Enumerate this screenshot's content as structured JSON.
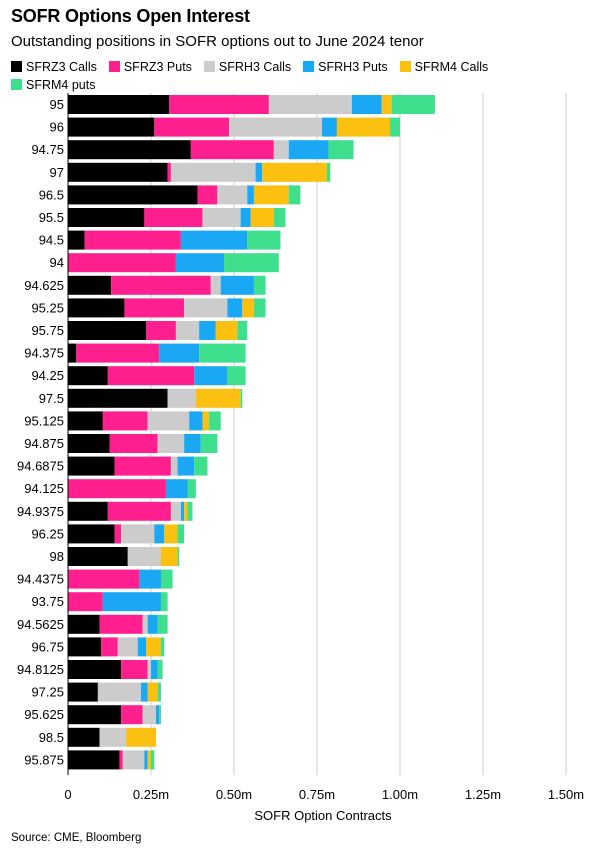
{
  "title": "SOFR Options Open Interest",
  "subtitle": "Outstanding positions in SOFR options out to June 2024 tenor",
  "source": "Source: CME, Bloomberg",
  "chart_data": {
    "type": "bar",
    "orientation": "horizontal",
    "stacked": true,
    "title": "SOFR Options Open Interest",
    "subtitle": "Outstanding positions in SOFR options out to June 2024 tenor",
    "xlabel": "SOFR Option Contracts",
    "ylabel": "",
    "xlim": [
      0,
      1.5
    ],
    "x_ticks": [
      0,
      0.25,
      0.5,
      0.75,
      1.0,
      1.25,
      1.5
    ],
    "x_tick_labels": [
      "0",
      "0.25m",
      "0.50m",
      "0.75m",
      "1.00m",
      "1.25m",
      "1.50m"
    ],
    "grid": true,
    "legend": "top",
    "categories": [
      "95",
      "96",
      "94.75",
      "97",
      "96.5",
      "95.5",
      "94.5",
      "94",
      "94.625",
      "95.25",
      "95.75",
      "94.375",
      "94.25",
      "97.5",
      "95.125",
      "94.875",
      "94.6875",
      "94.125",
      "94.9375",
      "96.25",
      "98",
      "94.4375",
      "93.75",
      "94.5625",
      "96.75",
      "94.8125",
      "97.25",
      "95.625",
      "98.5",
      "95.875"
    ],
    "series": [
      {
        "name": "SFRZ3 Calls",
        "color": "#000000",
        "values": [
          0.305,
          0.26,
          0.37,
          0.3,
          0.39,
          0.23,
          0.05,
          0,
          0.13,
          0.17,
          0.235,
          0.025,
          0.12,
          0.3,
          0.105,
          0.125,
          0.14,
          0,
          0.12,
          0.14,
          0.18,
          0,
          0,
          0.095,
          0.1,
          0.16,
          0.09,
          0.16,
          0.095,
          0.155
        ]
      },
      {
        "name": "SFRZ3 Puts",
        "color": "#ff1f8e",
        "values": [
          0.3,
          0.225,
          0.25,
          0.01,
          0.06,
          0.175,
          0.29,
          0.325,
          0.3,
          0.18,
          0.09,
          0.25,
          0.26,
          0,
          0.135,
          0.145,
          0.17,
          0.295,
          0.19,
          0.02,
          0,
          0.215,
          0.105,
          0.13,
          0.05,
          0.08,
          0,
          0.065,
          0,
          0.01
        ]
      },
      {
        "name": "SFRH3 Calls",
        "color": "#cccccc",
        "values": [
          0.25,
          0.28,
          0.045,
          0.255,
          0.09,
          0.115,
          0,
          0,
          0.03,
          0.13,
          0.07,
          0,
          0,
          0.085,
          0.125,
          0.08,
          0.02,
          0,
          0.03,
          0.1,
          0.1,
          0,
          0,
          0.015,
          0.06,
          0.01,
          0.13,
          0.04,
          0.08,
          0.065
        ]
      },
      {
        "name": "SFRH3 Puts",
        "color": "#1aa7f4",
        "values": [
          0.09,
          0.045,
          0.12,
          0.02,
          0.02,
          0.03,
          0.2,
          0.145,
          0.1,
          0.045,
          0.05,
          0.12,
          0.1,
          0,
          0.04,
          0.05,
          0.05,
          0.065,
          0.01,
          0.03,
          0,
          0.065,
          0.175,
          0.03,
          0.025,
          0.02,
          0.02,
          0.01,
          0,
          0.01
        ]
      },
      {
        "name": "SFRM4 Calls",
        "color": "#fcc010",
        "values": [
          0.03,
          0.16,
          0,
          0.195,
          0.105,
          0.07,
          0,
          0,
          0,
          0.035,
          0.065,
          0,
          0,
          0.135,
          0.02,
          0,
          0,
          0,
          0.01,
          0.04,
          0.05,
          0,
          0,
          0,
          0.045,
          0,
          0.03,
          0,
          0.09,
          0.01
        ]
      },
      {
        "name": "SFRM4 puts",
        "color": "#3ee08e",
        "values": [
          0.13,
          0.03,
          0.075,
          0.01,
          0.035,
          0.035,
          0.1,
          0.165,
          0.035,
          0.035,
          0.03,
          0.14,
          0.055,
          0.005,
          0.035,
          0.05,
          0.04,
          0.025,
          0.015,
          0.02,
          0.005,
          0.035,
          0.02,
          0.03,
          0.01,
          0.015,
          0.01,
          0.005,
          0,
          0.01
        ]
      }
    ]
  }
}
